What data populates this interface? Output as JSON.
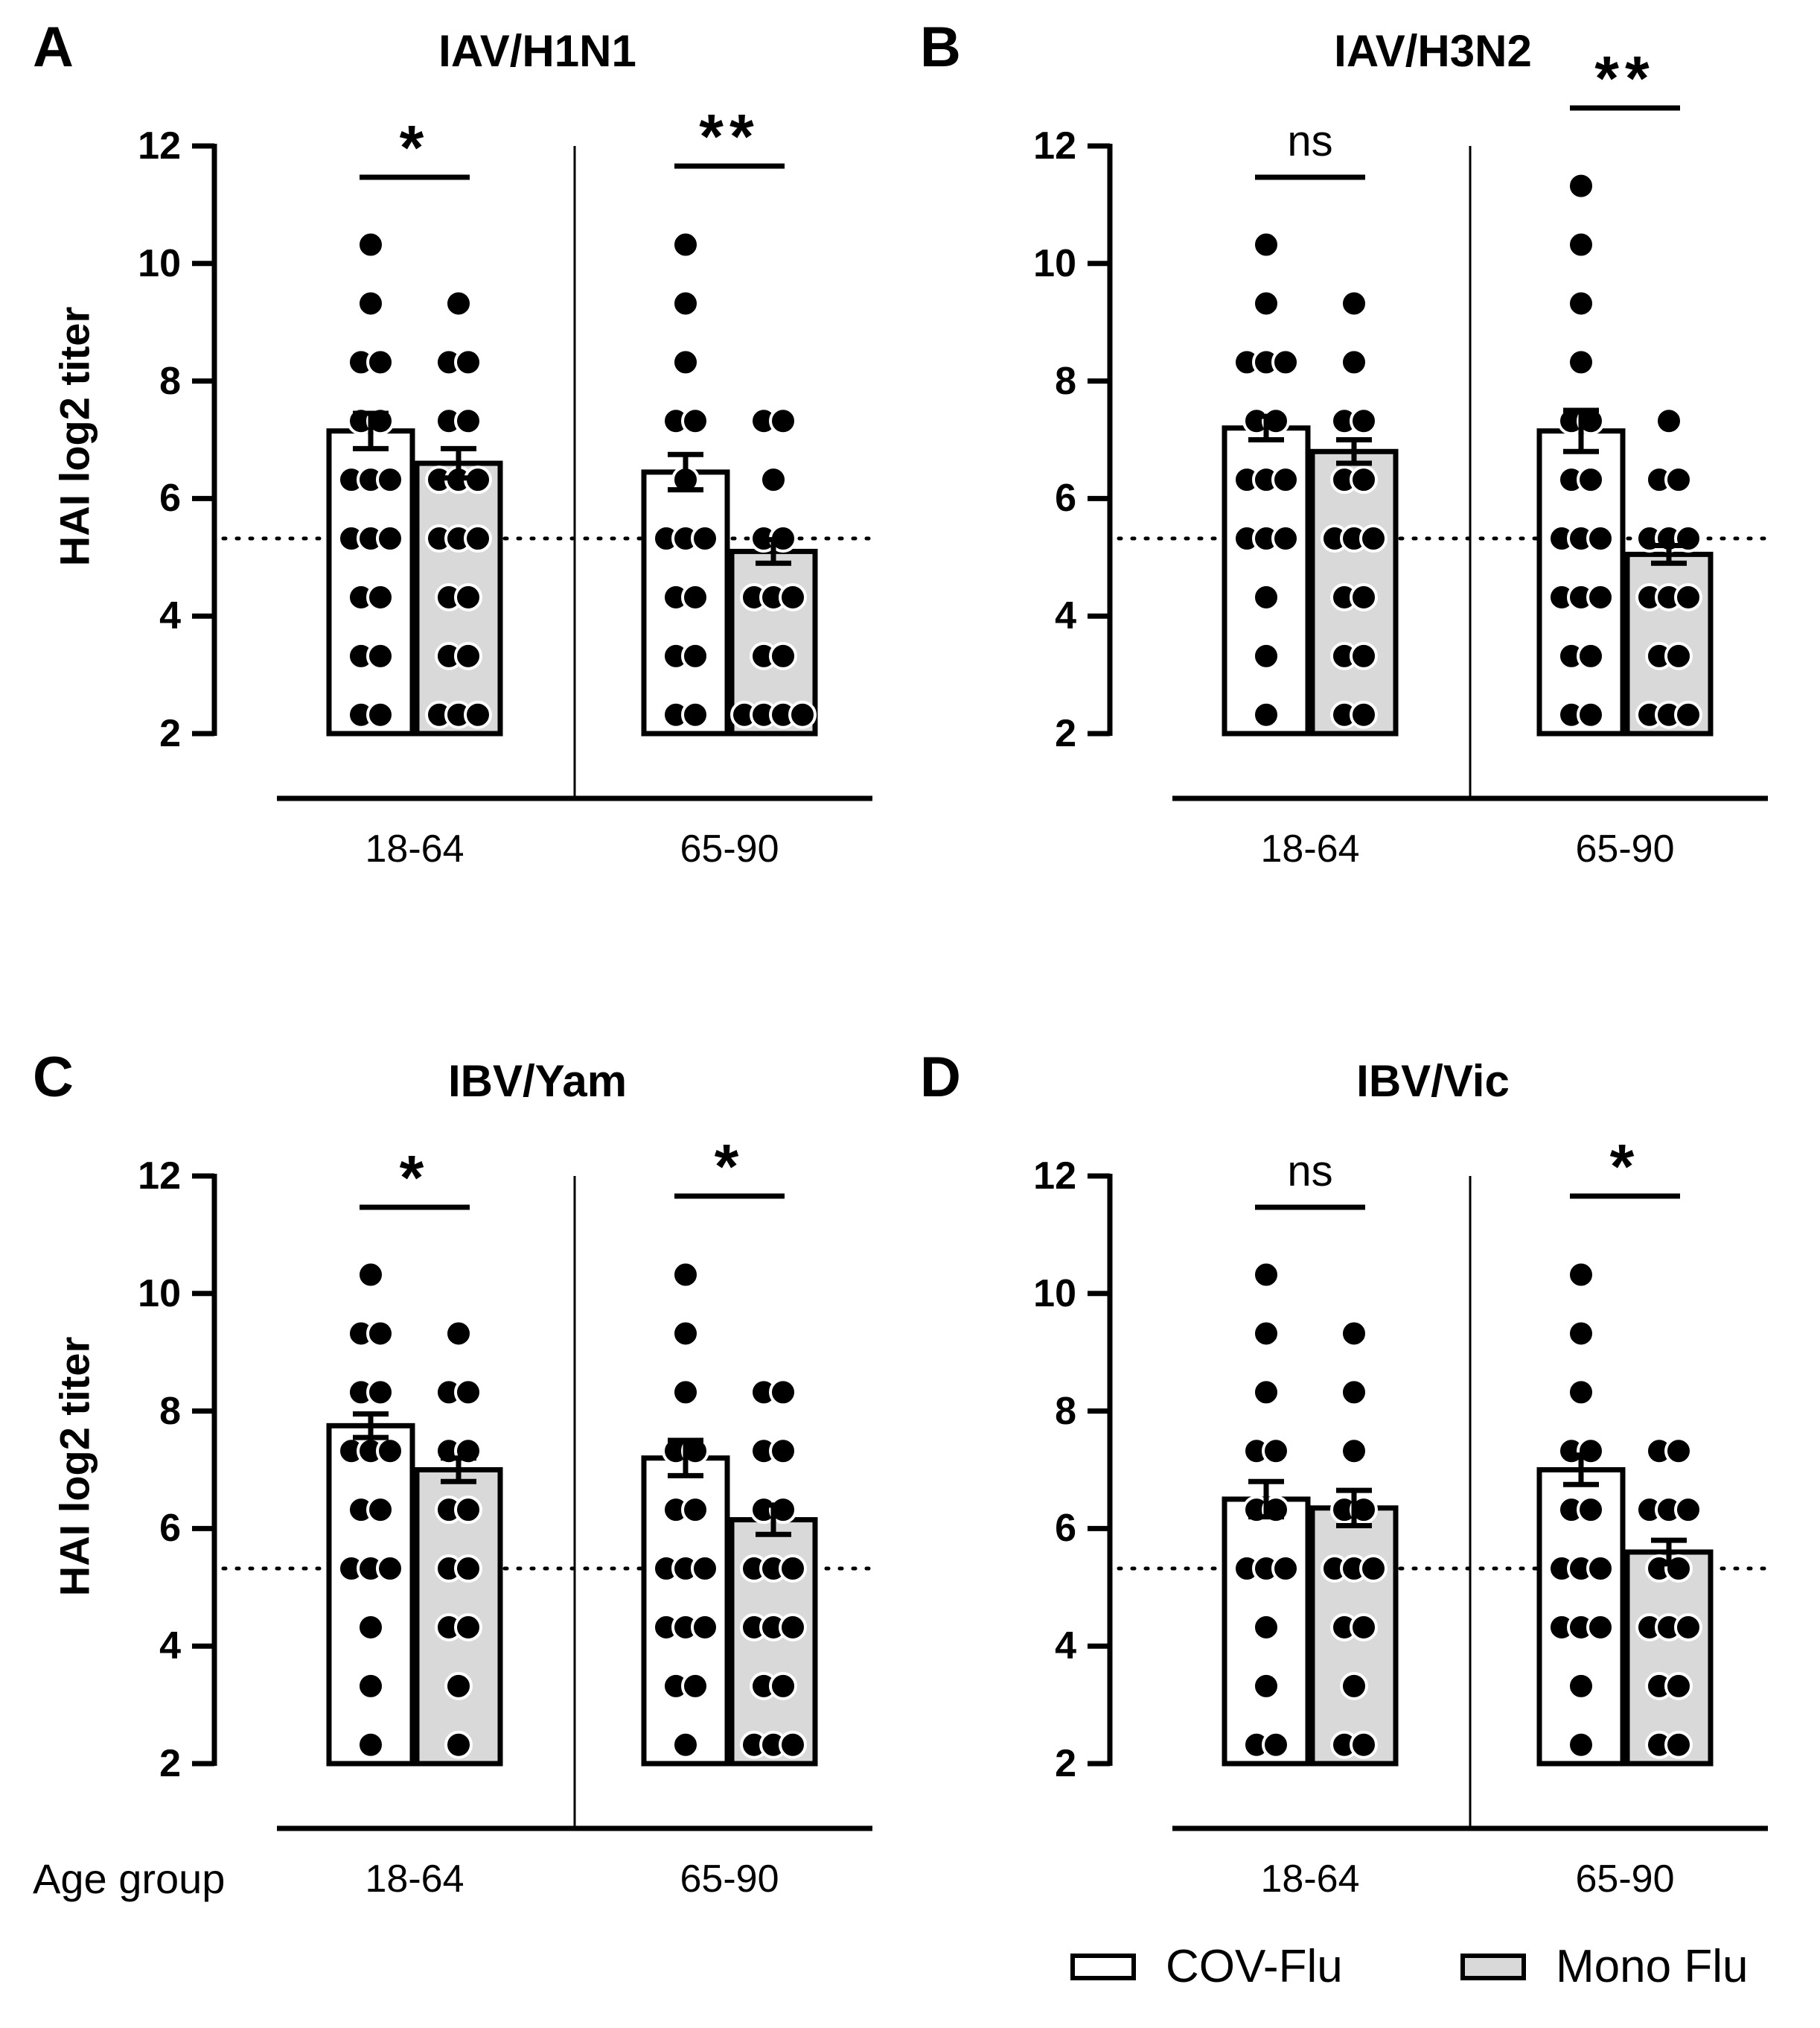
{
  "figure": {
    "x_axis_title": "Age group",
    "legend": [
      {
        "label": "COV-Flu",
        "color": "#ffffff"
      },
      {
        "label": "Mono Flu",
        "color": "#d9d9d9"
      }
    ],
    "colors": {
      "cov_flu": "#ffffff",
      "mono_flu": "#d9d9d9",
      "axis": "#000000",
      "dot": "#000000"
    }
  },
  "chart_data": [
    {
      "type": "bar",
      "panel": "A",
      "title": "IAV/H1N1",
      "xlabel": "",
      "ylabel": "HAI log2 titer",
      "ylim": [
        2,
        12
      ],
      "yticks": [
        "2",
        "4",
        "6",
        "8",
        "10",
        "12"
      ],
      "threshold": 5.32,
      "categories": [
        "18-64",
        "65-90"
      ],
      "series": [
        {
          "name": "COV-Flu",
          "values": [
            7.15,
            6.45
          ],
          "sem": [
            0.3,
            0.3
          ],
          "points": [
            [
              10.32,
              9.32,
              8.32,
              8.32,
              7.32,
              7.32,
              6.32,
              6.32,
              6.32,
              5.32,
              5.32,
              5.32,
              4.32,
              4.32,
              3.32,
              3.32,
              2.32,
              2.32
            ],
            [
              10.32,
              9.32,
              8.32,
              7.32,
              7.32,
              6.32,
              5.32,
              5.32,
              5.32,
              4.32,
              4.32,
              3.32,
              3.32,
              2.32,
              2.32
            ]
          ]
        },
        {
          "name": "Mono Flu",
          "values": [
            6.6,
            5.1
          ],
          "sem": [
            0.25,
            0.2
          ],
          "points": [
            [
              9.32,
              8.32,
              8.32,
              7.32,
              7.32,
              6.32,
              6.32,
              6.32,
              5.32,
              5.32,
              5.32,
              4.32,
              4.32,
              3.32,
              3.32,
              2.32,
              2.32,
              2.32
            ],
            [
              7.32,
              7.32,
              6.32,
              5.32,
              5.32,
              4.32,
              4.32,
              4.32,
              3.32,
              3.32,
              2.32,
              2.32,
              2.32,
              2.32
            ]
          ]
        }
      ],
      "significance": [
        "*",
        "**"
      ]
    },
    {
      "type": "bar",
      "panel": "B",
      "title": "IAV/H3N2",
      "xlabel": "",
      "ylabel": "",
      "ylim": [
        2,
        12
      ],
      "yticks": [
        "2",
        "4",
        "6",
        "8",
        "10",
        "12"
      ],
      "threshold": 5.32,
      "categories": [
        "18-64",
        "65-90"
      ],
      "series": [
        {
          "name": "COV-Flu",
          "values": [
            7.2,
            7.15
          ],
          "sem": [
            0.2,
            0.35
          ],
          "points": [
            [
              10.32,
              9.32,
              8.32,
              8.32,
              8.32,
              7.32,
              7.32,
              6.32,
              6.32,
              6.32,
              5.32,
              5.32,
              5.32,
              4.32,
              3.32,
              2.32
            ],
            [
              11.32,
              10.32,
              9.32,
              8.32,
              7.32,
              7.32,
              6.32,
              6.32,
              5.32,
              5.32,
              5.32,
              4.32,
              4.32,
              4.32,
              3.32,
              3.32,
              2.32,
              2.32
            ]
          ]
        },
        {
          "name": "Mono Flu",
          "values": [
            6.8,
            5.05
          ],
          "sem": [
            0.2,
            0.15
          ],
          "points": [
            [
              9.32,
              8.32,
              7.32,
              7.32,
              6.32,
              6.32,
              5.32,
              5.32,
              5.32,
              4.32,
              4.32,
              3.32,
              3.32,
              2.32,
              2.32
            ],
            [
              7.32,
              6.32,
              6.32,
              5.32,
              5.32,
              5.32,
              4.32,
              4.32,
              4.32,
              3.32,
              3.32,
              2.32,
              2.32,
              2.32
            ]
          ]
        }
      ],
      "significance": [
        "ns",
        "**"
      ]
    },
    {
      "type": "bar",
      "panel": "C",
      "title": "IBV/Yam",
      "xlabel": "Age group",
      "ylabel": "HAI log2 titer",
      "ylim": [
        2,
        12
      ],
      "yticks": [
        "2",
        "4",
        "6",
        "8",
        "10",
        "12"
      ],
      "threshold": 5.32,
      "categories": [
        "18-64",
        "65-90"
      ],
      "series": [
        {
          "name": "COV-Flu",
          "values": [
            7.75,
            7.2
          ],
          "sem": [
            0.2,
            0.3
          ],
          "points": [
            [
              10.32,
              9.32,
              9.32,
              8.32,
              8.32,
              7.32,
              7.32,
              7.32,
              6.32,
              6.32,
              5.32,
              5.32,
              5.32,
              4.32,
              3.32,
              2.32
            ],
            [
              10.32,
              9.32,
              8.32,
              7.32,
              7.32,
              6.32,
              6.32,
              5.32,
              5.32,
              5.32,
              4.32,
              4.32,
              4.32,
              3.32,
              3.32,
              2.32
            ]
          ]
        },
        {
          "name": "Mono Flu",
          "values": [
            7.0,
            6.15
          ],
          "sem": [
            0.2,
            0.25
          ],
          "points": [
            [
              9.32,
              8.32,
              8.32,
              7.32,
              7.32,
              6.32,
              6.32,
              5.32,
              5.32,
              4.32,
              4.32,
              3.32,
              2.32
            ],
            [
              8.32,
              8.32,
              7.32,
              7.32,
              6.32,
              6.32,
              5.32,
              5.32,
              5.32,
              4.32,
              4.32,
              4.32,
              3.32,
              3.32,
              2.32,
              2.32,
              2.32
            ]
          ]
        }
      ],
      "significance": [
        "*",
        "*"
      ]
    },
    {
      "type": "bar",
      "panel": "D",
      "title": "IBV/Vic",
      "xlabel": "Age group",
      "ylabel": "",
      "ylim": [
        2,
        12
      ],
      "yticks": [
        "2",
        "4",
        "6",
        "8",
        "10",
        "12"
      ],
      "threshold": 5.32,
      "categories": [
        "18-64",
        "65-90"
      ],
      "series": [
        {
          "name": "COV-Flu",
          "values": [
            6.5,
            7.0
          ],
          "sem": [
            0.3,
            0.25
          ],
          "points": [
            [
              10.32,
              9.32,
              8.32,
              7.32,
              7.32,
              6.32,
              6.32,
              5.32,
              5.32,
              5.32,
              4.32,
              3.32,
              2.32,
              2.32
            ],
            [
              10.32,
              9.32,
              8.32,
              7.32,
              7.32,
              6.32,
              6.32,
              5.32,
              5.32,
              5.32,
              4.32,
              4.32,
              4.32,
              3.32,
              2.32
            ]
          ]
        },
        {
          "name": "Mono Flu",
          "values": [
            6.35,
            5.6
          ],
          "sem": [
            0.3,
            0.2
          ],
          "points": [
            [
              9.32,
              8.32,
              7.32,
              6.32,
              6.32,
              5.32,
              5.32,
              5.32,
              4.32,
              4.32,
              3.32,
              2.32,
              2.32
            ],
            [
              7.32,
              7.32,
              6.32,
              6.32,
              6.32,
              5.32,
              5.32,
              4.32,
              4.32,
              4.32,
              3.32,
              3.32,
              2.32,
              2.32
            ]
          ]
        }
      ],
      "significance": [
        "ns",
        "*"
      ]
    }
  ]
}
